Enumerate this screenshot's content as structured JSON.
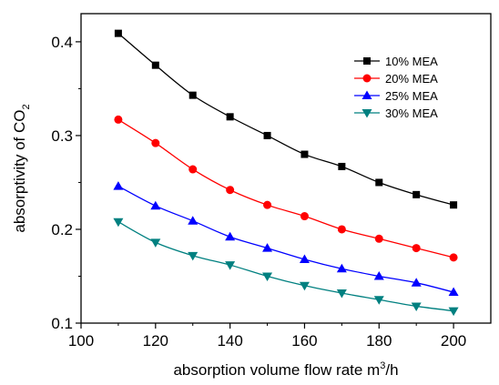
{
  "chart_data": {
    "type": "line",
    "xlabel": "absorption volume flow rate m",
    "xlabel_superscript": "3",
    "xlabel_suffix": "/h",
    "ylabel": "absorptivity of CO",
    "ylabel_subscript": "2",
    "xlim": [
      100,
      210
    ],
    "ylim": [
      0.1,
      0.43
    ],
    "xticks": [
      100,
      120,
      140,
      160,
      180,
      200
    ],
    "xtick_labels": [
      "100",
      "120",
      "140",
      "160",
      "180",
      "200"
    ],
    "yticks": [
      0.1,
      0.2,
      0.3,
      0.4
    ],
    "ytick_labels": [
      "0.1",
      "0.2",
      "0.3",
      "0.4"
    ],
    "grid": false,
    "legend_position": "top-right",
    "x": [
      110,
      120,
      130,
      140,
      150,
      160,
      170,
      180,
      190,
      200
    ],
    "series": [
      {
        "name": "10% MEA",
        "color": "#000000",
        "marker": "square",
        "values": [
          0.409,
          0.375,
          0.343,
          0.32,
          0.3,
          0.28,
          0.267,
          0.25,
          0.237,
          0.226
        ]
      },
      {
        "name": "20% MEA",
        "color": "#ff0000",
        "marker": "circle",
        "values": [
          0.317,
          0.292,
          0.264,
          0.242,
          0.226,
          0.214,
          0.2,
          0.19,
          0.18,
          0.17
        ]
      },
      {
        "name": "25% MEA",
        "color": "#0000ff",
        "marker": "triangle-up",
        "values": [
          0.246,
          0.225,
          0.209,
          0.192,
          0.18,
          0.168,
          0.158,
          0.15,
          0.143,
          0.133
        ]
      },
      {
        "name": "30% MEA",
        "color": "#008080",
        "marker": "triangle-down",
        "values": [
          0.208,
          0.186,
          0.172,
          0.162,
          0.15,
          0.14,
          0.132,
          0.125,
          0.118,
          0.113
        ]
      }
    ]
  }
}
